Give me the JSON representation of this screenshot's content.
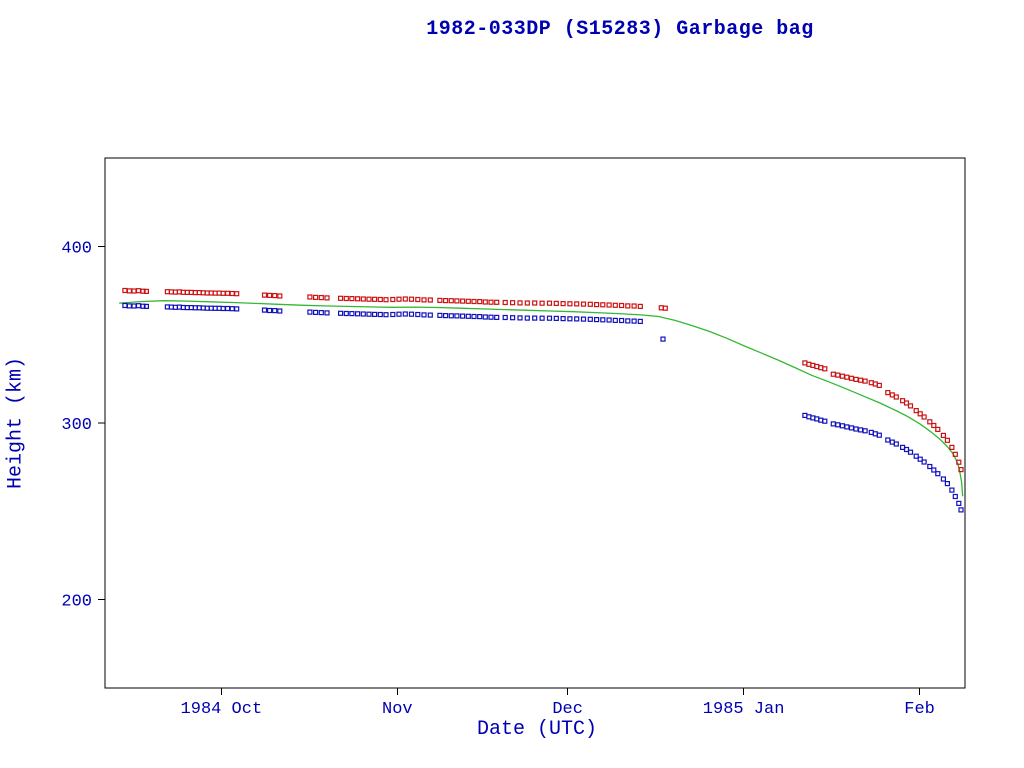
{
  "chart_data": {
    "type": "scatter",
    "title": "1982-033DP (S15283) Garbage bag",
    "xlabel": "Date (UTC)",
    "ylabel": "Height (km)",
    "x_unit": "days since 1984-10-01",
    "xlim": [
      -20.5,
      131
    ],
    "ylim": [
      150,
      450
    ],
    "grid": false,
    "legend": "none",
    "x_ticks": [
      {
        "value": 0,
        "label": "1984 Oct"
      },
      {
        "value": 31,
        "label": "Nov"
      },
      {
        "value": 61,
        "label": "Dec"
      },
      {
        "value": 92,
        "label": "1985 Jan"
      },
      {
        "value": 123,
        "label": "Feb"
      }
    ],
    "y_ticks": [
      {
        "value": 200,
        "label": "200"
      },
      {
        "value": 300,
        "label": "300"
      },
      {
        "value": 400,
        "label": "400"
      }
    ],
    "colors": {
      "frame": "#000000",
      "axis_text": "#0000b3",
      "red_series": "#cc1111",
      "blue_series": "#1111bb",
      "green_series": "#33b833"
    },
    "series": [
      {
        "name": "red squares (apogee height)",
        "type": "scatter",
        "marker": "square",
        "color": "#cc1111",
        "points": [
          [
            -17.0,
            375.0
          ],
          [
            -16.2,
            374.8
          ],
          [
            -15.4,
            374.7
          ],
          [
            -14.6,
            374.9
          ],
          [
            -13.8,
            374.6
          ],
          [
            -13.2,
            374.5
          ],
          [
            -9.5,
            374.3
          ],
          [
            -8.8,
            374.2
          ],
          [
            -8.1,
            374.1
          ],
          [
            -7.4,
            374.2
          ],
          [
            -6.7,
            374.0
          ],
          [
            -6.0,
            373.9
          ],
          [
            -5.3,
            373.9
          ],
          [
            -4.6,
            373.8
          ],
          [
            -3.9,
            373.8
          ],
          [
            -3.2,
            373.7
          ],
          [
            -2.5,
            373.6
          ],
          [
            -1.8,
            373.6
          ],
          [
            -1.1,
            373.5
          ],
          [
            -0.4,
            373.5
          ],
          [
            0.3,
            373.4
          ],
          [
            1.1,
            373.4
          ],
          [
            1.9,
            373.3
          ],
          [
            2.7,
            373.2
          ],
          [
            7.6,
            372.4
          ],
          [
            8.5,
            372.2
          ],
          [
            9.4,
            372.1
          ],
          [
            10.3,
            371.9
          ],
          [
            15.6,
            371.3
          ],
          [
            16.6,
            371.1
          ],
          [
            17.6,
            371.0
          ],
          [
            18.6,
            370.8
          ],
          [
            21.0,
            370.6
          ],
          [
            22.0,
            370.5
          ],
          [
            23.0,
            370.4
          ],
          [
            24.0,
            370.3
          ],
          [
            25.0,
            370.2
          ],
          [
            26.0,
            370.1
          ],
          [
            27.0,
            370.0
          ],
          [
            28.0,
            369.9
          ],
          [
            29.0,
            369.8
          ],
          [
            30.2,
            369.9
          ],
          [
            31.3,
            370.1
          ],
          [
            32.4,
            370.2
          ],
          [
            33.5,
            370.1
          ],
          [
            34.6,
            369.9
          ],
          [
            35.7,
            369.7
          ],
          [
            36.8,
            369.6
          ],
          [
            38.5,
            369.4
          ],
          [
            39.5,
            369.3
          ],
          [
            40.5,
            369.2
          ],
          [
            41.5,
            369.1
          ],
          [
            42.5,
            369.0
          ],
          [
            43.5,
            368.9
          ],
          [
            44.5,
            368.8
          ],
          [
            45.5,
            368.7
          ],
          [
            46.5,
            368.5
          ],
          [
            47.5,
            368.4
          ],
          [
            48.5,
            368.3
          ],
          [
            50.0,
            368.2
          ],
          [
            51.3,
            368.1
          ],
          [
            52.6,
            368.0
          ],
          [
            53.9,
            367.9
          ],
          [
            55.2,
            367.9
          ],
          [
            56.5,
            367.8
          ],
          [
            57.8,
            367.8
          ],
          [
            59.0,
            367.7
          ],
          [
            60.2,
            367.6
          ],
          [
            61.4,
            367.5
          ],
          [
            62.6,
            367.4
          ],
          [
            63.8,
            367.3
          ],
          [
            65.0,
            367.2
          ],
          [
            66.1,
            367.0
          ],
          [
            67.2,
            366.9
          ],
          [
            68.3,
            366.8
          ],
          [
            69.4,
            366.6
          ],
          [
            70.5,
            366.5
          ],
          [
            71.6,
            366.3
          ],
          [
            72.7,
            366.2
          ],
          [
            73.8,
            366.0
          ],
          [
            77.5,
            365.2
          ],
          [
            78.2,
            365.0
          ],
          [
            102.8,
            334.0
          ],
          [
            103.5,
            333.2
          ],
          [
            104.2,
            332.6
          ],
          [
            104.9,
            332.0
          ],
          [
            105.6,
            331.3
          ],
          [
            106.3,
            330.7
          ],
          [
            107.8,
            327.6
          ],
          [
            108.6,
            327.1
          ],
          [
            109.4,
            326.5
          ],
          [
            110.2,
            325.9
          ],
          [
            111.0,
            325.3
          ],
          [
            111.8,
            324.7
          ],
          [
            112.6,
            324.2
          ],
          [
            113.4,
            323.7
          ],
          [
            114.5,
            322.8
          ],
          [
            115.2,
            322.1
          ],
          [
            115.9,
            321.3
          ],
          [
            117.4,
            317.2
          ],
          [
            118.2,
            315.9
          ],
          [
            118.9,
            314.7
          ],
          [
            120.0,
            312.6
          ],
          [
            120.7,
            311.3
          ],
          [
            121.4,
            309.7
          ],
          [
            122.4,
            307.0
          ],
          [
            123.1,
            305.2
          ],
          [
            123.8,
            303.4
          ],
          [
            124.8,
            300.7
          ],
          [
            125.5,
            298.6
          ],
          [
            126.2,
            296.4
          ],
          [
            127.2,
            293.0
          ],
          [
            127.9,
            290.2
          ],
          [
            128.7,
            286.2
          ],
          [
            129.3,
            282.3
          ],
          [
            129.9,
            277.8
          ],
          [
            130.3,
            273.6
          ]
        ]
      },
      {
        "name": "blue squares (perigee height)",
        "type": "scatter",
        "marker": "square",
        "color": "#1111bb",
        "points": [
          [
            -17.0,
            366.5
          ],
          [
            -16.2,
            366.3
          ],
          [
            -15.4,
            366.2
          ],
          [
            -14.6,
            366.4
          ],
          [
            -13.8,
            366.1
          ],
          [
            -13.2,
            366.0
          ],
          [
            -9.5,
            365.7
          ],
          [
            -8.8,
            365.6
          ],
          [
            -8.1,
            365.5
          ],
          [
            -7.4,
            365.6
          ],
          [
            -6.7,
            365.4
          ],
          [
            -6.0,
            365.3
          ],
          [
            -5.3,
            365.3
          ],
          [
            -4.6,
            365.2
          ],
          [
            -3.9,
            365.2
          ],
          [
            -3.2,
            365.1
          ],
          [
            -2.5,
            365.0
          ],
          [
            -1.8,
            365.0
          ],
          [
            -1.1,
            364.9
          ],
          [
            -0.4,
            364.9
          ],
          [
            0.3,
            364.8
          ],
          [
            1.1,
            364.8
          ],
          [
            1.9,
            364.7
          ],
          [
            2.7,
            364.6
          ],
          [
            7.6,
            363.9
          ],
          [
            8.5,
            363.7
          ],
          [
            9.4,
            363.6
          ],
          [
            10.3,
            363.4
          ],
          [
            15.6,
            362.8
          ],
          [
            16.6,
            362.6
          ],
          [
            17.6,
            362.5
          ],
          [
            18.6,
            362.3
          ],
          [
            21.0,
            362.1
          ],
          [
            22.0,
            362.0
          ],
          [
            23.0,
            361.9
          ],
          [
            24.0,
            361.8
          ],
          [
            25.0,
            361.7
          ],
          [
            26.0,
            361.6
          ],
          [
            27.0,
            361.5
          ],
          [
            28.0,
            361.4
          ],
          [
            29.0,
            361.3
          ],
          [
            30.2,
            361.4
          ],
          [
            31.3,
            361.6
          ],
          [
            32.4,
            361.7
          ],
          [
            33.5,
            361.6
          ],
          [
            34.6,
            361.4
          ],
          [
            35.7,
            361.2
          ],
          [
            36.8,
            361.1
          ],
          [
            38.5,
            360.9
          ],
          [
            39.5,
            360.8
          ],
          [
            40.5,
            360.7
          ],
          [
            41.5,
            360.6
          ],
          [
            42.5,
            360.5
          ],
          [
            43.5,
            360.4
          ],
          [
            44.5,
            360.3
          ],
          [
            45.5,
            360.2
          ],
          [
            46.5,
            360.0
          ],
          [
            47.5,
            359.9
          ],
          [
            48.5,
            359.8
          ],
          [
            50.0,
            359.7
          ],
          [
            51.3,
            359.6
          ],
          [
            52.6,
            359.5
          ],
          [
            53.9,
            359.4
          ],
          [
            55.2,
            359.4
          ],
          [
            56.5,
            359.3
          ],
          [
            57.8,
            359.3
          ],
          [
            59.0,
            359.2
          ],
          [
            60.2,
            359.1
          ],
          [
            61.4,
            359.0
          ],
          [
            62.6,
            358.9
          ],
          [
            63.8,
            358.8
          ],
          [
            65.0,
            358.7
          ],
          [
            66.1,
            358.5
          ],
          [
            67.2,
            358.4
          ],
          [
            68.3,
            358.3
          ],
          [
            69.4,
            358.1
          ],
          [
            70.5,
            358.0
          ],
          [
            71.6,
            357.8
          ],
          [
            72.7,
            357.7
          ],
          [
            73.8,
            357.5
          ],
          [
            77.8,
            347.5
          ],
          [
            102.8,
            304.3
          ],
          [
            103.5,
            303.5
          ],
          [
            104.2,
            302.9
          ],
          [
            104.9,
            302.3
          ],
          [
            105.6,
            301.6
          ],
          [
            106.3,
            301.0
          ],
          [
            107.8,
            299.5
          ],
          [
            108.6,
            299.0
          ],
          [
            109.4,
            298.4
          ],
          [
            110.2,
            297.8
          ],
          [
            111.0,
            297.2
          ],
          [
            111.8,
            296.6
          ],
          [
            112.6,
            296.1
          ],
          [
            113.4,
            295.6
          ],
          [
            114.5,
            294.7
          ],
          [
            115.2,
            293.9
          ],
          [
            115.9,
            293.1
          ],
          [
            117.4,
            290.4
          ],
          [
            118.2,
            289.2
          ],
          [
            118.9,
            288.1
          ],
          [
            120.0,
            286.2
          ],
          [
            120.7,
            285.0
          ],
          [
            121.4,
            283.5
          ],
          [
            122.4,
            281.2
          ],
          [
            123.1,
            279.5
          ],
          [
            123.8,
            277.9
          ],
          [
            124.8,
            275.4
          ],
          [
            125.5,
            273.4
          ],
          [
            126.2,
            271.3
          ],
          [
            127.2,
            268.3
          ],
          [
            127.9,
            265.7
          ],
          [
            128.7,
            262.0
          ],
          [
            129.3,
            258.4
          ],
          [
            129.9,
            254.5
          ],
          [
            130.3,
            250.8
          ]
        ]
      },
      {
        "name": "green line (mean height fit)",
        "type": "line",
        "color": "#33b833",
        "points": [
          [
            -18.0,
            367.8
          ],
          [
            -14.0,
            368.8
          ],
          [
            -10.0,
            369.2
          ],
          [
            -6.0,
            369.0
          ],
          [
            -2.0,
            368.6
          ],
          [
            2.0,
            368.2
          ],
          [
            6.0,
            367.7
          ],
          [
            10.0,
            367.2
          ],
          [
            14.0,
            366.7
          ],
          [
            18.0,
            366.3
          ],
          [
            22.0,
            366.0
          ],
          [
            26.0,
            365.7
          ],
          [
            30.0,
            365.5
          ],
          [
            34.0,
            365.6
          ],
          [
            38.0,
            365.4
          ],
          [
            42.0,
            365.0
          ],
          [
            46.0,
            364.6
          ],
          [
            50.0,
            364.2
          ],
          [
            54.0,
            363.8
          ],
          [
            58.0,
            363.4
          ],
          [
            62.0,
            363.0
          ],
          [
            66.0,
            362.5
          ],
          [
            70.0,
            361.9
          ],
          [
            74.0,
            361.2
          ],
          [
            77.0,
            360.3
          ],
          [
            80.0,
            358.0
          ],
          [
            83.0,
            355.0
          ],
          [
            86.0,
            351.8
          ],
          [
            89.0,
            348.0
          ],
          [
            92.0,
            343.8
          ],
          [
            95.0,
            339.8
          ],
          [
            98.0,
            335.7
          ],
          [
            101.0,
            331.4
          ],
          [
            104.0,
            327.0
          ],
          [
            107.0,
            323.3
          ],
          [
            110.0,
            319.4
          ],
          [
            113.0,
            315.4
          ],
          [
            116.0,
            311.3
          ],
          [
            119.0,
            306.8
          ],
          [
            121.0,
            303.5
          ],
          [
            123.0,
            299.6
          ],
          [
            125.0,
            295.0
          ],
          [
            126.5,
            291.0
          ],
          [
            127.8,
            287.0
          ],
          [
            128.8,
            283.0
          ],
          [
            129.5,
            278.8
          ],
          [
            130.0,
            274.0
          ],
          [
            130.4,
            266.5
          ],
          [
            130.6,
            258.5
          ]
        ]
      }
    ]
  }
}
